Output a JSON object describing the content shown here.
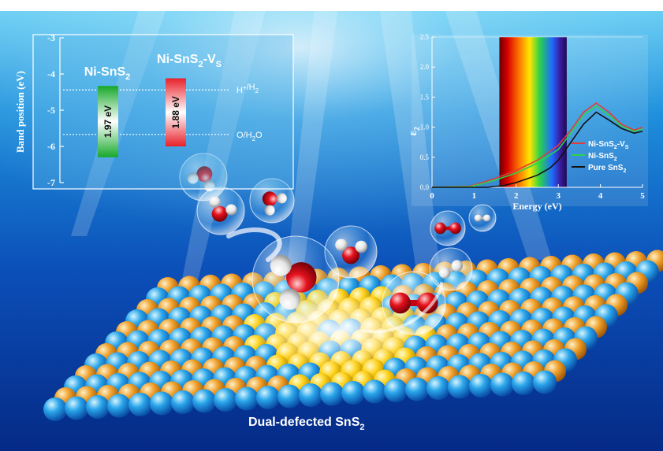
{
  "band_panel": {
    "ylabel": "Band position (eV)",
    "yticks": [
      "-3",
      "-4",
      "-5",
      "-6",
      "-7"
    ],
    "materials": [
      {
        "name": "Ni-SnS",
        "sub": "2",
        "suffix": "",
        "suffix_sub": "",
        "gap": "1.97 eV",
        "vb": -6.3,
        "cb": -4.33,
        "color": "#2ecc40"
      },
      {
        "name": "Ni-SnS",
        "sub": "2",
        "suffix": "-V",
        "suffix_sub": "S",
        "gap": "1.88 eV",
        "vb": -6.0,
        "cb": -4.12,
        "color": "#e8202a"
      }
    ],
    "levels": [
      {
        "label": "H",
        "sup": "+",
        "rest": "/H",
        "sub": "2",
        "value": -4.44
      },
      {
        "label": "O",
        "sup": "",
        "rest": "/H",
        "sub": "2",
        "tail": "O",
        "value": -5.67
      }
    ]
  },
  "chart_data": {
    "type": "line",
    "ylabel": "ε",
    "ylabel_sub": "2",
    "xlabel": "Energy (eV)",
    "xlim": [
      0,
      5
    ],
    "ylim": [
      0,
      2.5
    ],
    "xticks": [
      "0",
      "1",
      "2",
      "3",
      "4",
      "5"
    ],
    "yticks": [
      "0.0",
      "0.5",
      "1.0",
      "1.5",
      "2.0",
      "2.5"
    ],
    "visible_band": [
      1.6,
      3.2
    ],
    "series": [
      {
        "name": "Ni-SnS",
        "name_sub": "2",
        "name_suffix": "-V",
        "name_suffix_sub": "S",
        "color": "#e23b3b",
        "x": [
          0,
          0.9,
          1.2,
          1.5,
          2.0,
          2.5,
          3.0,
          3.3,
          3.6,
          3.9,
          4.2,
          4.5,
          4.8,
          5.0
        ],
        "y": [
          0,
          0.02,
          0.08,
          0.15,
          0.28,
          0.45,
          0.7,
          0.95,
          1.25,
          1.4,
          1.25,
          1.05,
          0.95,
          1.0
        ]
      },
      {
        "name": "Ni-SnS",
        "name_sub": "2",
        "name_suffix": "",
        "name_suffix_sub": "",
        "color": "#2bd24a",
        "x": [
          0,
          0.9,
          1.2,
          1.5,
          2.0,
          2.5,
          3.0,
          3.3,
          3.6,
          3.9,
          4.2,
          4.5,
          4.8,
          5.0
        ],
        "y": [
          0,
          0.01,
          0.06,
          0.12,
          0.24,
          0.4,
          0.63,
          0.9,
          1.2,
          1.35,
          1.2,
          1.02,
          0.93,
          0.97
        ]
      },
      {
        "name": "Pure SnS",
        "name_sub": "2",
        "name_suffix": "",
        "name_suffix_sub": "",
        "color": "#111111",
        "x": [
          0,
          1.3,
          1.7,
          2.0,
          2.5,
          2.8,
          3.0,
          3.3,
          3.6,
          3.9,
          4.2,
          4.5,
          4.8,
          5.0
        ],
        "y": [
          0,
          0.0,
          0.03,
          0.08,
          0.2,
          0.32,
          0.45,
          0.75,
          1.05,
          1.25,
          1.12,
          0.98,
          0.9,
          0.93
        ]
      }
    ]
  },
  "caption": {
    "text": "Dual-defected SnS",
    "sub": "2"
  }
}
